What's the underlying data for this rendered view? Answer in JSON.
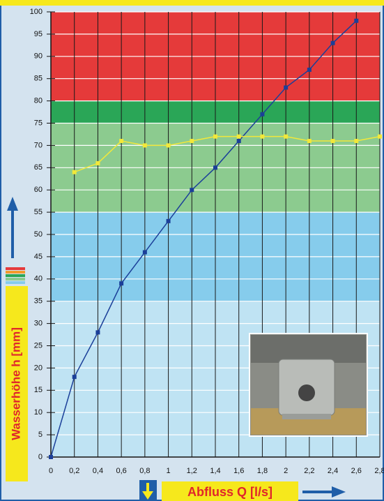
{
  "chart_data": {
    "type": "line",
    "x_label": "Abfluss Q [l/s]",
    "y_label": "Wasserhöhe h [mm]",
    "xlim": [
      0,
      2.8
    ],
    "ylim": [
      0,
      100
    ],
    "xticks": [
      0,
      {
        "value": 0.2,
        "label": "0,2"
      },
      {
        "value": 0.4,
        "label": "0,4"
      },
      {
        "value": 0.6,
        "label": "0,6"
      },
      {
        "value": 0.8,
        "label": "0,8"
      },
      1,
      {
        "value": 1.2,
        "label": "1,2"
      },
      {
        "value": 1.4,
        "label": "1,4"
      },
      {
        "value": 1.6,
        "label": "1,6"
      },
      {
        "value": 1.8,
        "label": "1,8"
      },
      2,
      {
        "value": 2.2,
        "label": "2,2"
      },
      {
        "value": 2.4,
        "label": "2,4"
      },
      {
        "value": 2.6,
        "label": "2,6"
      },
      {
        "value": 2.8,
        "label": "2,8"
      }
    ],
    "yticks": [
      0,
      5,
      10,
      15,
      20,
      25,
      30,
      35,
      40,
      45,
      50,
      55,
      60,
      65,
      70,
      75,
      80,
      85,
      90,
      95,
      100
    ],
    "zones": [
      {
        "from": 80,
        "to": 100,
        "color": "#e53a3a"
      },
      {
        "from": 75,
        "to": 80,
        "color": "#2aa657"
      },
      {
        "from": 55,
        "to": 75,
        "color": "#8ccb8f"
      },
      {
        "from": 35,
        "to": 55,
        "color": "#86ccec"
      },
      {
        "from": 0,
        "to": 35,
        "color": "#bfe3f3"
      }
    ],
    "series": [
      {
        "color": "#1b3f99",
        "x": [
          0,
          0.2,
          0.4,
          0.6,
          0.8,
          1,
          1.2,
          1.4,
          1.6,
          1.8,
          2,
          2.2,
          2.4,
          2.6
        ],
        "values": [
          0,
          18,
          28,
          39,
          46,
          53,
          60,
          65,
          71,
          77,
          83,
          87,
          93,
          98
        ]
      },
      {
        "color": "#f2e83a",
        "x": [
          0.2,
          0.4,
          0.6,
          0.8,
          1,
          1.2,
          1.4,
          1.6,
          1.8,
          2,
          2.2,
          2.4,
          2.6,
          2.8
        ],
        "values": [
          64,
          66,
          71,
          70,
          70,
          71,
          72,
          72,
          72,
          72,
          71,
          71,
          71,
          72
        ]
      }
    ]
  }
}
